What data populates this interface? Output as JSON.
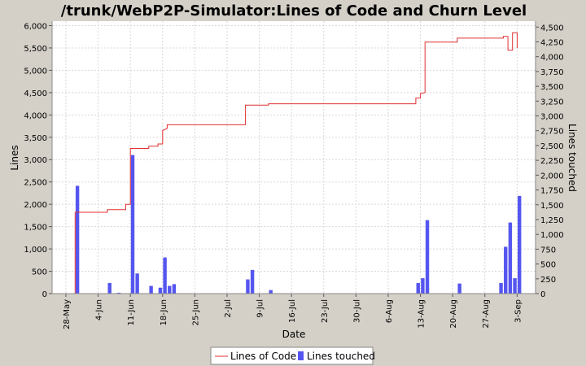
{
  "chart_data": {
    "type": "line+bar",
    "title": "/trunk/WebP2P-Simulator:Lines of Code and Churn Level",
    "xlabel": "Date",
    "ylabel": "Lines",
    "y2label": "Lines touched",
    "x_range": [
      "2007-05-25",
      "2007-09-07"
    ],
    "ylim": [
      0,
      6100
    ],
    "y2lim": [
      0,
      4600
    ],
    "y_ticks": [
      0,
      500,
      1000,
      1500,
      2000,
      2500,
      3000,
      3500,
      4000,
      4500,
      5000,
      5500,
      6000
    ],
    "y2_ticks": [
      0,
      250,
      500,
      750,
      1000,
      1250,
      1500,
      1750,
      2000,
      2250,
      2500,
      2750,
      3000,
      3250,
      3500,
      3750,
      4000,
      4250,
      4500
    ],
    "x_ticks": [
      {
        "date": "2007-05-28",
        "label": "28-May"
      },
      {
        "date": "2007-06-04",
        "label": "4-Jun"
      },
      {
        "date": "2007-06-11",
        "label": "11-Jun"
      },
      {
        "date": "2007-06-18",
        "label": "18-Jun"
      },
      {
        "date": "2007-06-25",
        "label": "25-Jun"
      },
      {
        "date": "2007-07-02",
        "label": "2-Jul"
      },
      {
        "date": "2007-07-09",
        "label": "9-Jul"
      },
      {
        "date": "2007-07-16",
        "label": "16-Jul"
      },
      {
        "date": "2007-07-23",
        "label": "23-Jul"
      },
      {
        "date": "2007-07-30",
        "label": "30-Jul"
      },
      {
        "date": "2007-08-06",
        "label": "6-Aug"
      },
      {
        "date": "2007-08-13",
        "label": "13-Aug"
      },
      {
        "date": "2007-08-20",
        "label": "20-Aug"
      },
      {
        "date": "2007-08-27",
        "label": "27-Aug"
      },
      {
        "date": "2007-09-03",
        "label": "3-Sep"
      }
    ],
    "grid": true,
    "legend_position": "bottom",
    "series": [
      {
        "name": "Lines of Code",
        "type": "step-line",
        "axis": "left",
        "color": "#e03030",
        "points": [
          [
            "2007-05-30",
            0
          ],
          [
            "2007-05-30",
            1820
          ],
          [
            "2007-06-06",
            1820
          ],
          [
            "2007-06-06",
            1880
          ],
          [
            "2007-06-10",
            1880
          ],
          [
            "2007-06-10",
            2000
          ],
          [
            "2007-06-11",
            2000
          ],
          [
            "2007-06-11",
            3200
          ],
          [
            "2007-06-11",
            3250
          ],
          [
            "2007-06-15",
            3250
          ],
          [
            "2007-06-15",
            3300
          ],
          [
            "2007-06-17",
            3300
          ],
          [
            "2007-06-17",
            3350
          ],
          [
            "2007-06-18",
            3350
          ],
          [
            "2007-06-18",
            3450
          ],
          [
            "2007-06-18",
            3650
          ],
          [
            "2007-06-19",
            3700
          ],
          [
            "2007-06-19",
            3780
          ],
          [
            "2007-07-06",
            3780
          ],
          [
            "2007-07-06",
            4050
          ],
          [
            "2007-07-06",
            4220
          ],
          [
            "2007-07-11",
            4220
          ],
          [
            "2007-07-11",
            4250
          ],
          [
            "2007-08-12",
            4250
          ],
          [
            "2007-08-12",
            4380
          ],
          [
            "2007-08-13",
            4380
          ],
          [
            "2007-08-13",
            4480
          ],
          [
            "2007-08-14",
            4500
          ],
          [
            "2007-08-14",
            5630
          ],
          [
            "2007-08-21",
            5630
          ],
          [
            "2007-08-21",
            5720
          ],
          [
            "2007-08-31",
            5720
          ],
          [
            "2007-08-31",
            5760
          ],
          [
            "2007-09-01",
            5760
          ],
          [
            "2007-09-01",
            5450
          ],
          [
            "2007-09-02",
            5450
          ],
          [
            "2007-09-02",
            5680
          ],
          [
            "2007-09-02",
            5840
          ],
          [
            "2007-09-03",
            5840
          ],
          [
            "2007-09-03",
            5500
          ],
          [
            "2007-09-03",
            5780
          ]
        ]
      },
      {
        "name": "Lines touched",
        "type": "bar",
        "axis": "right",
        "color": "#5555f0",
        "points": [
          [
            "2007-05-30",
            1820
          ],
          [
            "2007-06-06",
            180
          ],
          [
            "2007-06-08",
            15
          ],
          [
            "2007-06-11",
            2340
          ],
          [
            "2007-06-12",
            340
          ],
          [
            "2007-06-15",
            130
          ],
          [
            "2007-06-17",
            100
          ],
          [
            "2007-06-18",
            610
          ],
          [
            "2007-06-19",
            130
          ],
          [
            "2007-06-20",
            160
          ],
          [
            "2007-07-06",
            240
          ],
          [
            "2007-07-07",
            400
          ],
          [
            "2007-07-11",
            60
          ],
          [
            "2007-08-12",
            180
          ],
          [
            "2007-08-13",
            260
          ],
          [
            "2007-08-14",
            1240
          ],
          [
            "2007-08-21",
            170
          ],
          [
            "2007-08-30",
            180
          ],
          [
            "2007-08-31",
            790
          ],
          [
            "2007-09-01",
            1200
          ],
          [
            "2007-09-02",
            260
          ],
          [
            "2007-09-03",
            1650
          ]
        ]
      }
    ]
  }
}
